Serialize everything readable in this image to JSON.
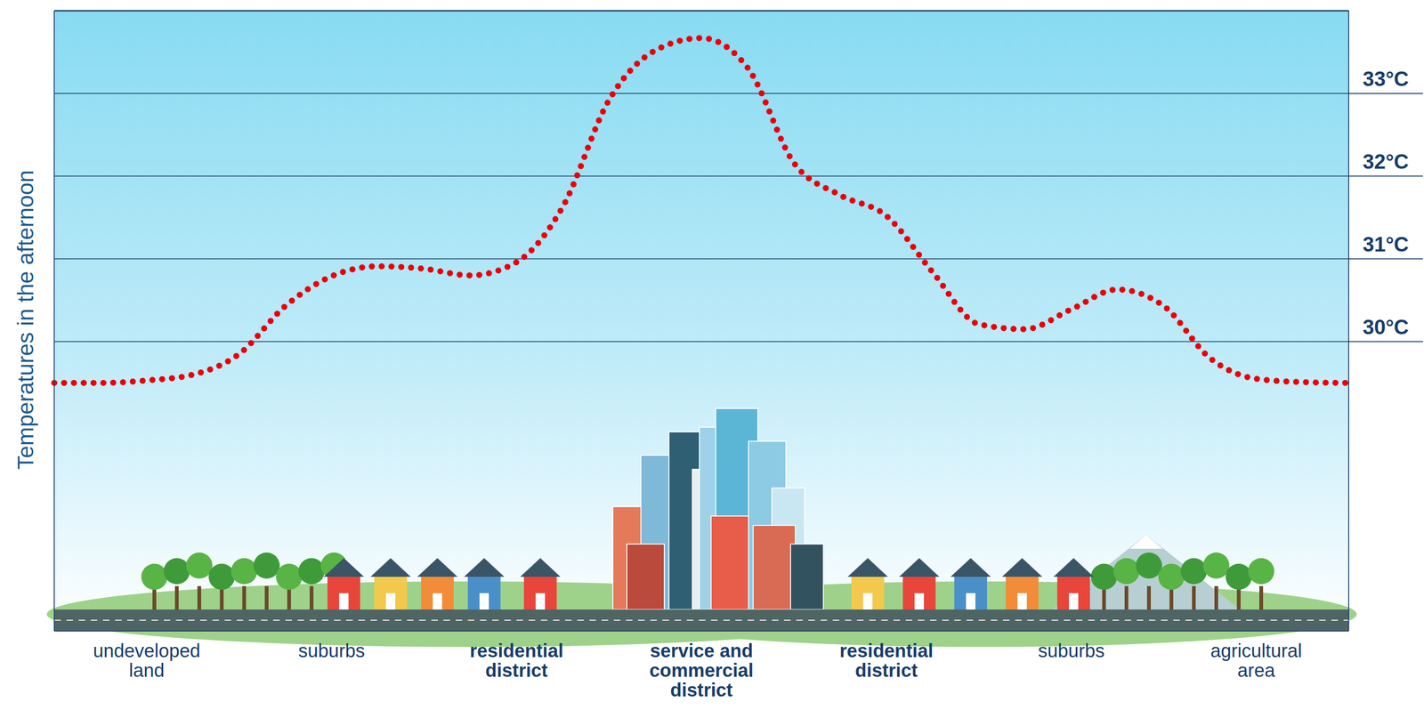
{
  "chart_data": {
    "type": "line",
    "y_label": "Temperatures in the afternoon",
    "categories": [
      null,
      null,
      "undeveloped land",
      null,
      null,
      null,
      "suburbs",
      null,
      null,
      null,
      "residential district",
      null,
      null,
      null,
      "service and commercial district",
      null,
      null,
      null,
      "residential district",
      null,
      null,
      null,
      "suburbs",
      null,
      null,
      null,
      "agricultural area",
      null,
      null
    ],
    "values": [
      29.5,
      29.5,
      29.53,
      29.6,
      29.85,
      30.43,
      30.79,
      30.91,
      30.88,
      30.8,
      30.96,
      31.63,
      32.92,
      33.52,
      33.67,
      33.31,
      32.16,
      31.77,
      31.52,
      30.84,
      30.21,
      30.15,
      30.39,
      30.63,
      30.43,
      29.8,
      29.55,
      29.51,
      29.5
    ],
    "color": "#e8000b",
    "line_style": "dotted",
    "ylim": [
      26.5,
      34
    ],
    "yticks": [
      {
        "value": 30,
        "label": "30°C"
      },
      {
        "value": 31,
        "label": "31°C"
      },
      {
        "value": 32,
        "label": "32°C"
      },
      {
        "value": 33,
        "label": "33°C"
      }
    ],
    "grid": true
  }
}
